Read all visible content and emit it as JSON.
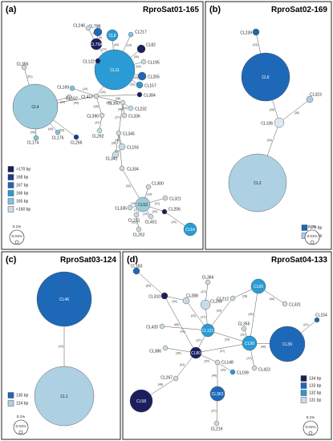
{
  "figure": {
    "panels": [
      {
        "id": "a",
        "letter": "(a)",
        "title": "RproSat01-165",
        "colors": [
          "#1b1f5e",
          "#1f3a93",
          "#1e68b8",
          "#2a9bd4",
          "#7fc3e0",
          "#c6dce8"
        ],
        "legend": [
          {
            "label": ">170 bp",
            "color": "#1b1f5e"
          },
          {
            "label": "168 bp",
            "color": "#1f3a93"
          },
          {
            "label": "167 bp",
            "color": "#1e68b8"
          },
          {
            "label": "166 bp",
            "color": "#2a9bd4"
          },
          {
            "label": "165 bp",
            "color": "#7fc3e0"
          },
          {
            "label": "<160 bp",
            "color": "#c6dce8"
          }
        ],
        "scale": {
          "percent": "0.1%",
          "inner": "0.01%"
        },
        "nodes": [
          {
            "id": "CL4",
            "label": "CL4",
            "inner": true,
            "color": "#9ccbdc"
          },
          {
            "id": "CL11",
            "label": "CL11",
            "inner": true,
            "color": "#2a9bd4"
          },
          {
            "id": "CL79A",
            "label": "CL79A",
            "inner": true,
            "color": "#1b1f5e"
          },
          {
            "id": "CL79B",
            "label": "CL79B",
            "color": "#1e68b8"
          },
          {
            "id": "CL8",
            "label": "CL8",
            "inner": true,
            "color": "#2a9bd4"
          },
          {
            "id": "CL82",
            "label": "CL82",
            "color": "#1b1f5e"
          },
          {
            "id": "CL53",
            "label": "CL53",
            "inner": true,
            "color": "#9ccbdc"
          },
          {
            "id": "CL64",
            "label": "CL64",
            "inner": true,
            "color": "#2a9bd4"
          },
          {
            "id": "CL246",
            "label": "CL246",
            "color": "#c6dce8"
          },
          {
            "id": "CL217",
            "label": "CL217",
            "color": "#7fc3e0"
          },
          {
            "id": "CL195",
            "label": "CL195",
            "color": "#c6dce8"
          },
          {
            "id": "CL255",
            "label": "CL255",
            "color": "#1e68b8"
          },
          {
            "id": "CL157",
            "label": "CL157",
            "color": "#2a9bd4"
          },
          {
            "id": "CL122",
            "label": "CL122",
            "color": "#1b1f5e"
          },
          {
            "id": "CL169",
            "label": "CL169",
            "color": "#7fc3e0"
          },
          {
            "id": "CL356",
            "label": "CL356",
            "color": "#c6dce8"
          },
          {
            "id": "CL384",
            "label": "CL384",
            "color": "#1b1f5e"
          },
          {
            "id": "CL417",
            "label": "CL417",
            "color": "#c6dce8"
          },
          {
            "id": "CL162",
            "label": "CL162",
            "color": "#c6dce8"
          },
          {
            "id": "CL350",
            "label": "CL350",
            "color": "#c6dce8"
          },
          {
            "id": "CL232",
            "label": "CL232",
            "color": "#c6dce8"
          },
          {
            "id": "CL336",
            "label": "CL336",
            "color": "#c6dce8"
          },
          {
            "id": "CL390",
            "label": "CL390",
            "color": "#c6dce8"
          },
          {
            "id": "CL174",
            "label": "CL174",
            "color": "#7fc3e0"
          },
          {
            "id": "CL176",
            "label": "CL176",
            "color": "#7fc3e0"
          },
          {
            "id": "CL256",
            "label": "CL256",
            "color": "#1f3a93"
          },
          {
            "id": "CL292",
            "label": "CL292",
            "color": "#c6dce8"
          },
          {
            "id": "CL345",
            "label": "CL345",
            "color": "#c6dce8"
          },
          {
            "id": "CL193",
            "label": "CL193",
            "color": "#c6dce8"
          },
          {
            "id": "CL341",
            "label": "CL341",
            "color": "#c6dce8"
          },
          {
            "id": "CL334",
            "label": "CL334",
            "color": "#c6dce8"
          },
          {
            "id": "CL300",
            "label": "CL300",
            "color": "#c6dce8"
          },
          {
            "id": "CL321",
            "label": "CL321",
            "color": "#c6dce8"
          },
          {
            "id": "CL335",
            "label": "CL335",
            "color": "#c6dce8"
          },
          {
            "id": "CL231",
            "label": "CL231",
            "color": "#c6dce8"
          },
          {
            "id": "CL401",
            "label": "CL401",
            "color": "#c6dce8"
          },
          {
            "id": "CL206",
            "label": "CL206",
            "color": "#1b1f5e"
          },
          {
            "id": "CL252",
            "label": "CL252",
            "color": "#c6dce8"
          }
        ],
        "edges": [
          {
            "from": "CL4",
            "to": "CL417",
            "label": "(54)"
          },
          {
            "from": "CL4",
            "to": "CL356",
            "label": "(51)"
          },
          {
            "from": "CL4",
            "to": "CL174",
            "label": "(40)"
          },
          {
            "from": "CL4",
            "to": "CL176",
            "label": "(44)"
          },
          {
            "from": "CL4",
            "to": "CL162",
            "label": "(24)"
          },
          {
            "from": "CL4",
            "to": "CL256",
            "label": "(53)"
          },
          {
            "from": "CL417",
            "to": "CL11",
            "label": "(33)"
          },
          {
            "from": "CL417",
            "to": "CL169",
            "label": "(14)"
          },
          {
            "from": "CL417",
            "to": "CL384",
            "label": "(48)"
          },
          {
            "from": "CL417",
            "to": "CL350",
            "label": "(38)"
          },
          {
            "from": "CL417",
            "to": "CL390",
            "label": "(28)"
          },
          {
            "from": "CL11",
            "to": "CL79A",
            "label": "(12)"
          },
          {
            "from": "CL79A",
            "to": "CL79B",
            "label": "(4)"
          },
          {
            "from": "CL79A",
            "to": "CL246",
            "label": "(8)"
          },
          {
            "from": "CL11",
            "to": "CL8",
            "label": "(20)"
          },
          {
            "from": "CL11",
            "to": "CL217",
            "label": "(19)"
          },
          {
            "from": "CL11",
            "to": "CL82",
            "label": "(30)"
          },
          {
            "from": "CL11",
            "to": "CL195",
            "label": "(42)"
          },
          {
            "from": "CL11",
            "to": "CL255",
            "label": "(33)"
          },
          {
            "from": "CL11",
            "to": "CL157",
            "label": "(26)"
          },
          {
            "from": "CL11",
            "to": "CL122",
            "label": "(8)"
          },
          {
            "from": "CL350",
            "to": "CL232",
            "label": "(24)"
          },
          {
            "from": "CL350",
            "to": "CL336",
            "label": "(40)"
          },
          {
            "from": "CL350",
            "to": "CL345",
            "label": "(27)"
          },
          {
            "from": "CL390",
            "to": "CL292",
            "label": "(41)"
          },
          {
            "from": "CL345",
            "to": "CL193",
            "label": "(18)"
          },
          {
            "from": "CL345",
            "to": "CL341",
            "label": "(36)"
          },
          {
            "from": "CL345",
            "to": "CL334",
            "label": "(16)"
          },
          {
            "from": "CL334",
            "to": "CL53",
            "label": "(32)"
          },
          {
            "from": "CL53",
            "to": "CL300",
            "label": "(19)"
          },
          {
            "from": "CL53",
            "to": "CL321",
            "label": "(21)"
          },
          {
            "from": "CL53",
            "to": "CL335",
            "label": "(19)"
          },
          {
            "from": "CL53",
            "to": "CL231",
            "label": "(7)"
          },
          {
            "from": "CL53",
            "to": "CL401",
            "label": "(19)"
          },
          {
            "from": "CL53",
            "to": "CL206",
            "label": "(20)"
          },
          {
            "from": "CL206",
            "to": "CL64",
            "label": "(24)"
          },
          {
            "from": "CL231",
            "to": "CL252",
            "label": "(22)"
          }
        ]
      },
      {
        "id": "b",
        "letter": "(b)",
        "title": "RproSat02-169",
        "legend": [
          {
            "label": "170 bp",
            "color": "#1e68b8"
          },
          {
            "label": "169 bp",
            "color": "#add0e3"
          }
        ],
        "scale": {
          "percent": "0.1%",
          "inner": "0.01%"
        },
        "nodes": [
          {
            "id": "CL6",
            "label": "CL6",
            "inner": true,
            "color": "#1e68b8"
          },
          {
            "id": "CL2",
            "label": "CL2",
            "inner": true,
            "color": "#add0e3"
          },
          {
            "id": "CL239",
            "label": "CL239",
            "color": "#1e68b8"
          },
          {
            "id": "CL323",
            "label": "CL323",
            "color": "#add0e3"
          },
          {
            "id": "CL106",
            "label": "CL106",
            "color": "#dde9ef"
          }
        ],
        "edges": [
          {
            "from": "CL239",
            "to": "CL6",
            "label": "(23)"
          },
          {
            "from": "CL6",
            "to": "CL106",
            "label": "(26)"
          },
          {
            "from": "CL106",
            "to": "CL323",
            "label": "(30)"
          },
          {
            "from": "CL106",
            "to": "CL2",
            "label": "(32)"
          }
        ]
      },
      {
        "id": "c",
        "letter": "(c)",
        "title": "RproSat03-124",
        "legend": [
          {
            "label": "130 bp",
            "color": "#1e68b8"
          },
          {
            "label": "124 bp",
            "color": "#add0e3"
          }
        ],
        "scale": {
          "percent": "0.1%",
          "inner": "0.01%"
        },
        "nodes": [
          {
            "id": "CL46",
            "label": "CL46",
            "inner": true,
            "color": "#1e68b8"
          },
          {
            "id": "CL1",
            "label": "CL1",
            "inner": true,
            "color": "#add0e3"
          }
        ],
        "edges": [
          {
            "from": "CL46",
            "to": "CL1",
            "label": "(12)"
          }
        ]
      },
      {
        "id": "d",
        "letter": "(d)",
        "title": "RproSat04-133",
        "legend": [
          {
            "label": "134 bp",
            "color": "#1b1f5e"
          },
          {
            "label": "133 bp",
            "color": "#1e68b8"
          },
          {
            "label": "132 bp",
            "color": "#2a9bd4"
          },
          {
            "label": "131 bp",
            "color": "#c6dce8"
          }
        ],
        "scale": {
          "percent": "0.1%",
          "inner": "0.01%"
        },
        "nodes": [
          {
            "id": "CL183",
            "label": "CL183",
            "color": "#1e68b8"
          },
          {
            "id": "CL310",
            "label": "CL310",
            "color": "#1b1f5e"
          },
          {
            "id": "CL288",
            "label": "CL288",
            "color": "#c6dce8"
          },
          {
            "id": "CL244",
            "label": "CL244",
            "color": "#c6dce8"
          },
          {
            "id": "CL366",
            "label": "CL366",
            "color": "#c6dce8"
          },
          {
            "id": "CL212",
            "label": "CL212",
            "color": "#c6dce8"
          },
          {
            "id": "CL65",
            "label": "CL65",
            "inner": true,
            "color": "#2a9bd4"
          },
          {
            "id": "CL331",
            "label": "CL331",
            "color": "#c6dce8"
          },
          {
            "id": "CL154",
            "label": "CL154",
            "color": "#1e68b8"
          },
          {
            "id": "CL420",
            "label": "CL420",
            "color": "#c6dce8"
          },
          {
            "id": "CL131",
            "label": "CL131",
            "inner": true,
            "color": "#2a9bd4"
          },
          {
            "id": "CL355",
            "label": "CL355",
            "color": "#c6dce8"
          },
          {
            "id": "CL386",
            "label": "CL386",
            "color": "#c6dce8"
          },
          {
            "id": "CL80",
            "label": "CL80",
            "inner": true,
            "color": "#1b1f5e"
          },
          {
            "id": "CL39",
            "label": "CL39",
            "inner": true,
            "color": "#1e68b8"
          },
          {
            "id": "CL99",
            "label": "CL99",
            "inner": true,
            "color": "#2a9bd4"
          },
          {
            "id": "CL148",
            "label": "CL148",
            "color": "#c6dce8"
          },
          {
            "id": "CL199",
            "label": "CL199",
            "color": "#2a9bd4"
          },
          {
            "id": "CL423",
            "label": "CL423",
            "color": "#c6dce8"
          },
          {
            "id": "CL267",
            "label": "CL267",
            "color": "#c6dce8"
          },
          {
            "id": "CL58",
            "label": "CL58",
            "inner": true,
            "color": "#1b1f5e"
          },
          {
            "id": "CL363",
            "label": "CL363",
            "inner": true,
            "color": "#1e68b8"
          },
          {
            "id": "CL219",
            "label": "CL219",
            "color": "#c6dce8"
          }
        ],
        "edges": [
          {
            "from": "CL183",
            "to": "CL310",
            "label": "(54)"
          },
          {
            "from": "CL310",
            "to": "CL288",
            "label": "(54)"
          },
          {
            "from": "CL310",
            "to": "CL80",
            "label": "(65)"
          },
          {
            "from": "CL288",
            "to": "CL131",
            "label": "(22)"
          },
          {
            "from": "CL244",
            "to": "CL131",
            "label": "(27)"
          },
          {
            "from": "CL366",
            "to": "CL244",
            "label": "(27)"
          },
          {
            "from": "CL212",
            "to": "CL131",
            "label": "(29)"
          },
          {
            "from": "CL212",
            "to": "CL65",
            "label": "(18)"
          },
          {
            "from": "CL65",
            "to": "CL331",
            "label": "(30)"
          },
          {
            "from": "CL65",
            "to": "CL99",
            "label": "(35)"
          },
          {
            "from": "CL154",
            "to": "CL39",
            "label": "(41)"
          },
          {
            "from": "CL420",
            "to": "CL131",
            "label": "(41)"
          },
          {
            "from": "CL131",
            "to": "CL80",
            "label": "(37)"
          },
          {
            "from": "CL131",
            "to": "CL99",
            "label": "(29)"
          },
          {
            "from": "CL355",
            "to": "CL99",
            "label": "(31)"
          },
          {
            "from": "CL386",
            "to": "CL80",
            "label": "(36)"
          },
          {
            "from": "CL80",
            "to": "CL99",
            "label": "(27)"
          },
          {
            "from": "CL99",
            "to": "CL39",
            "label": "(48)"
          },
          {
            "from": "CL80",
            "to": "CL148",
            "label": "(20)"
          },
          {
            "from": "CL148",
            "to": "CL199",
            "label": "(26)"
          },
          {
            "from": "CL99",
            "to": "CL423",
            "label": "(27)"
          },
          {
            "from": "CL148",
            "to": "CL363",
            "label": "(49)"
          },
          {
            "from": "CL80",
            "to": "CL267",
            "label": "(51)"
          },
          {
            "from": "CL267",
            "to": "CL58",
            "label": "(48)"
          },
          {
            "from": "CL363",
            "to": "CL219",
            "label": "(37)"
          }
        ]
      }
    ]
  }
}
